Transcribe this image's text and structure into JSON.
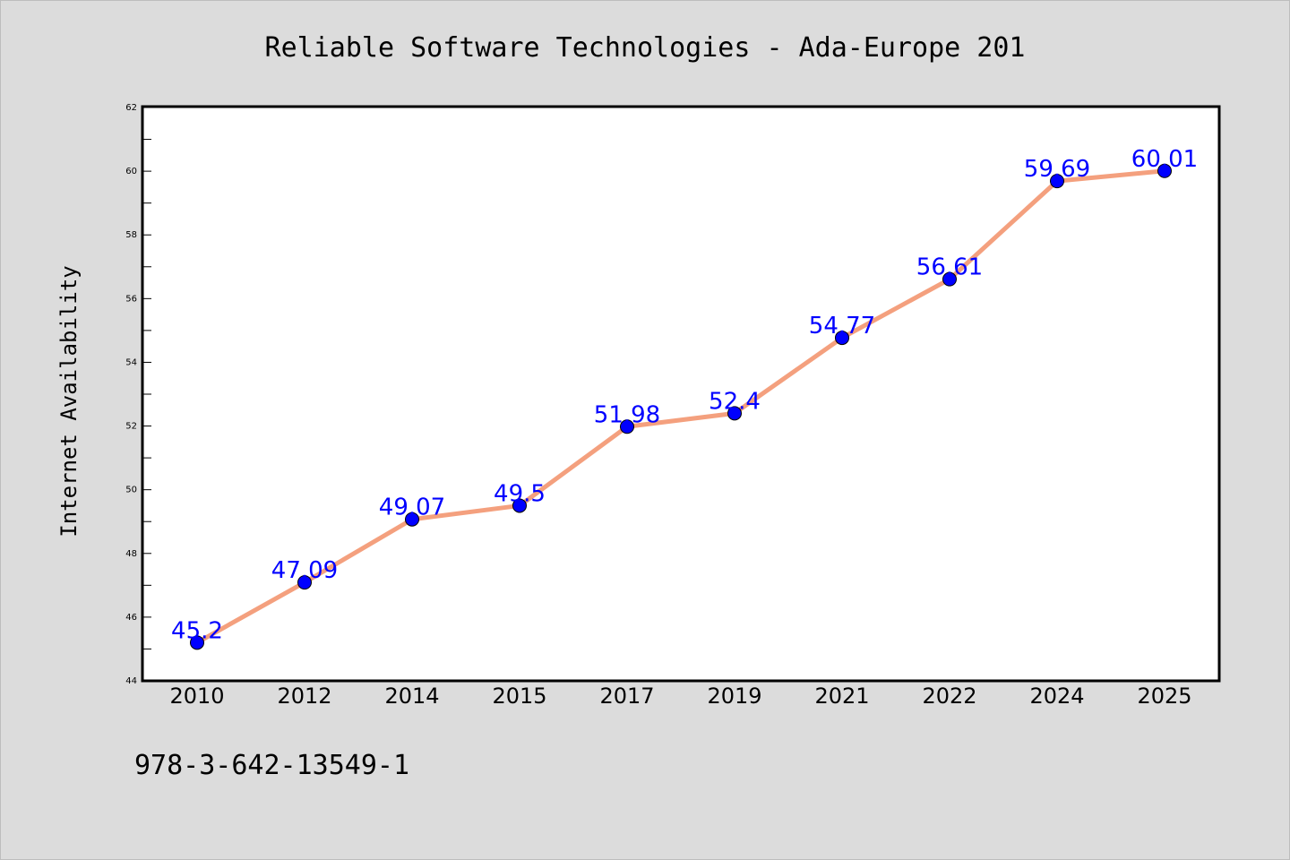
{
  "chart_data": {
    "type": "line",
    "title": "Reliable Software Technologies - Ada-Europe 201",
    "xlabel": "",
    "ylabel": "Internet Availability",
    "categories": [
      "2010",
      "2012",
      "2014",
      "2015",
      "2017",
      "2019",
      "2021",
      "2022",
      "2024",
      "2025"
    ],
    "series": [
      {
        "values": [
          45.2,
          47.09,
          49.07,
          49.5,
          51.98,
          52.4,
          54.77,
          56.61,
          59.69,
          60.01
        ],
        "data_labels": [
          "45.2",
          "47.09",
          "49.07",
          "49.5",
          "51.98",
          "52.4",
          "54.77",
          "56.61",
          "59.69",
          "60.01"
        ],
        "line_color": "#f4a07e",
        "marker_color": "#0000ff"
      }
    ],
    "ylim": [
      44,
      62
    ],
    "yticks": [
      44,
      46,
      48,
      50,
      52,
      54,
      56,
      58,
      60,
      62
    ],
    "grid": false,
    "legend": "none"
  },
  "footer": {
    "isbn": "978-3-642-13549-1"
  },
  "colors": {
    "background": "#dcdcdc",
    "plot_area": "#ffffff",
    "line": "#f4a07e",
    "marker": "#0000ff",
    "data_label": "#0000ff"
  }
}
